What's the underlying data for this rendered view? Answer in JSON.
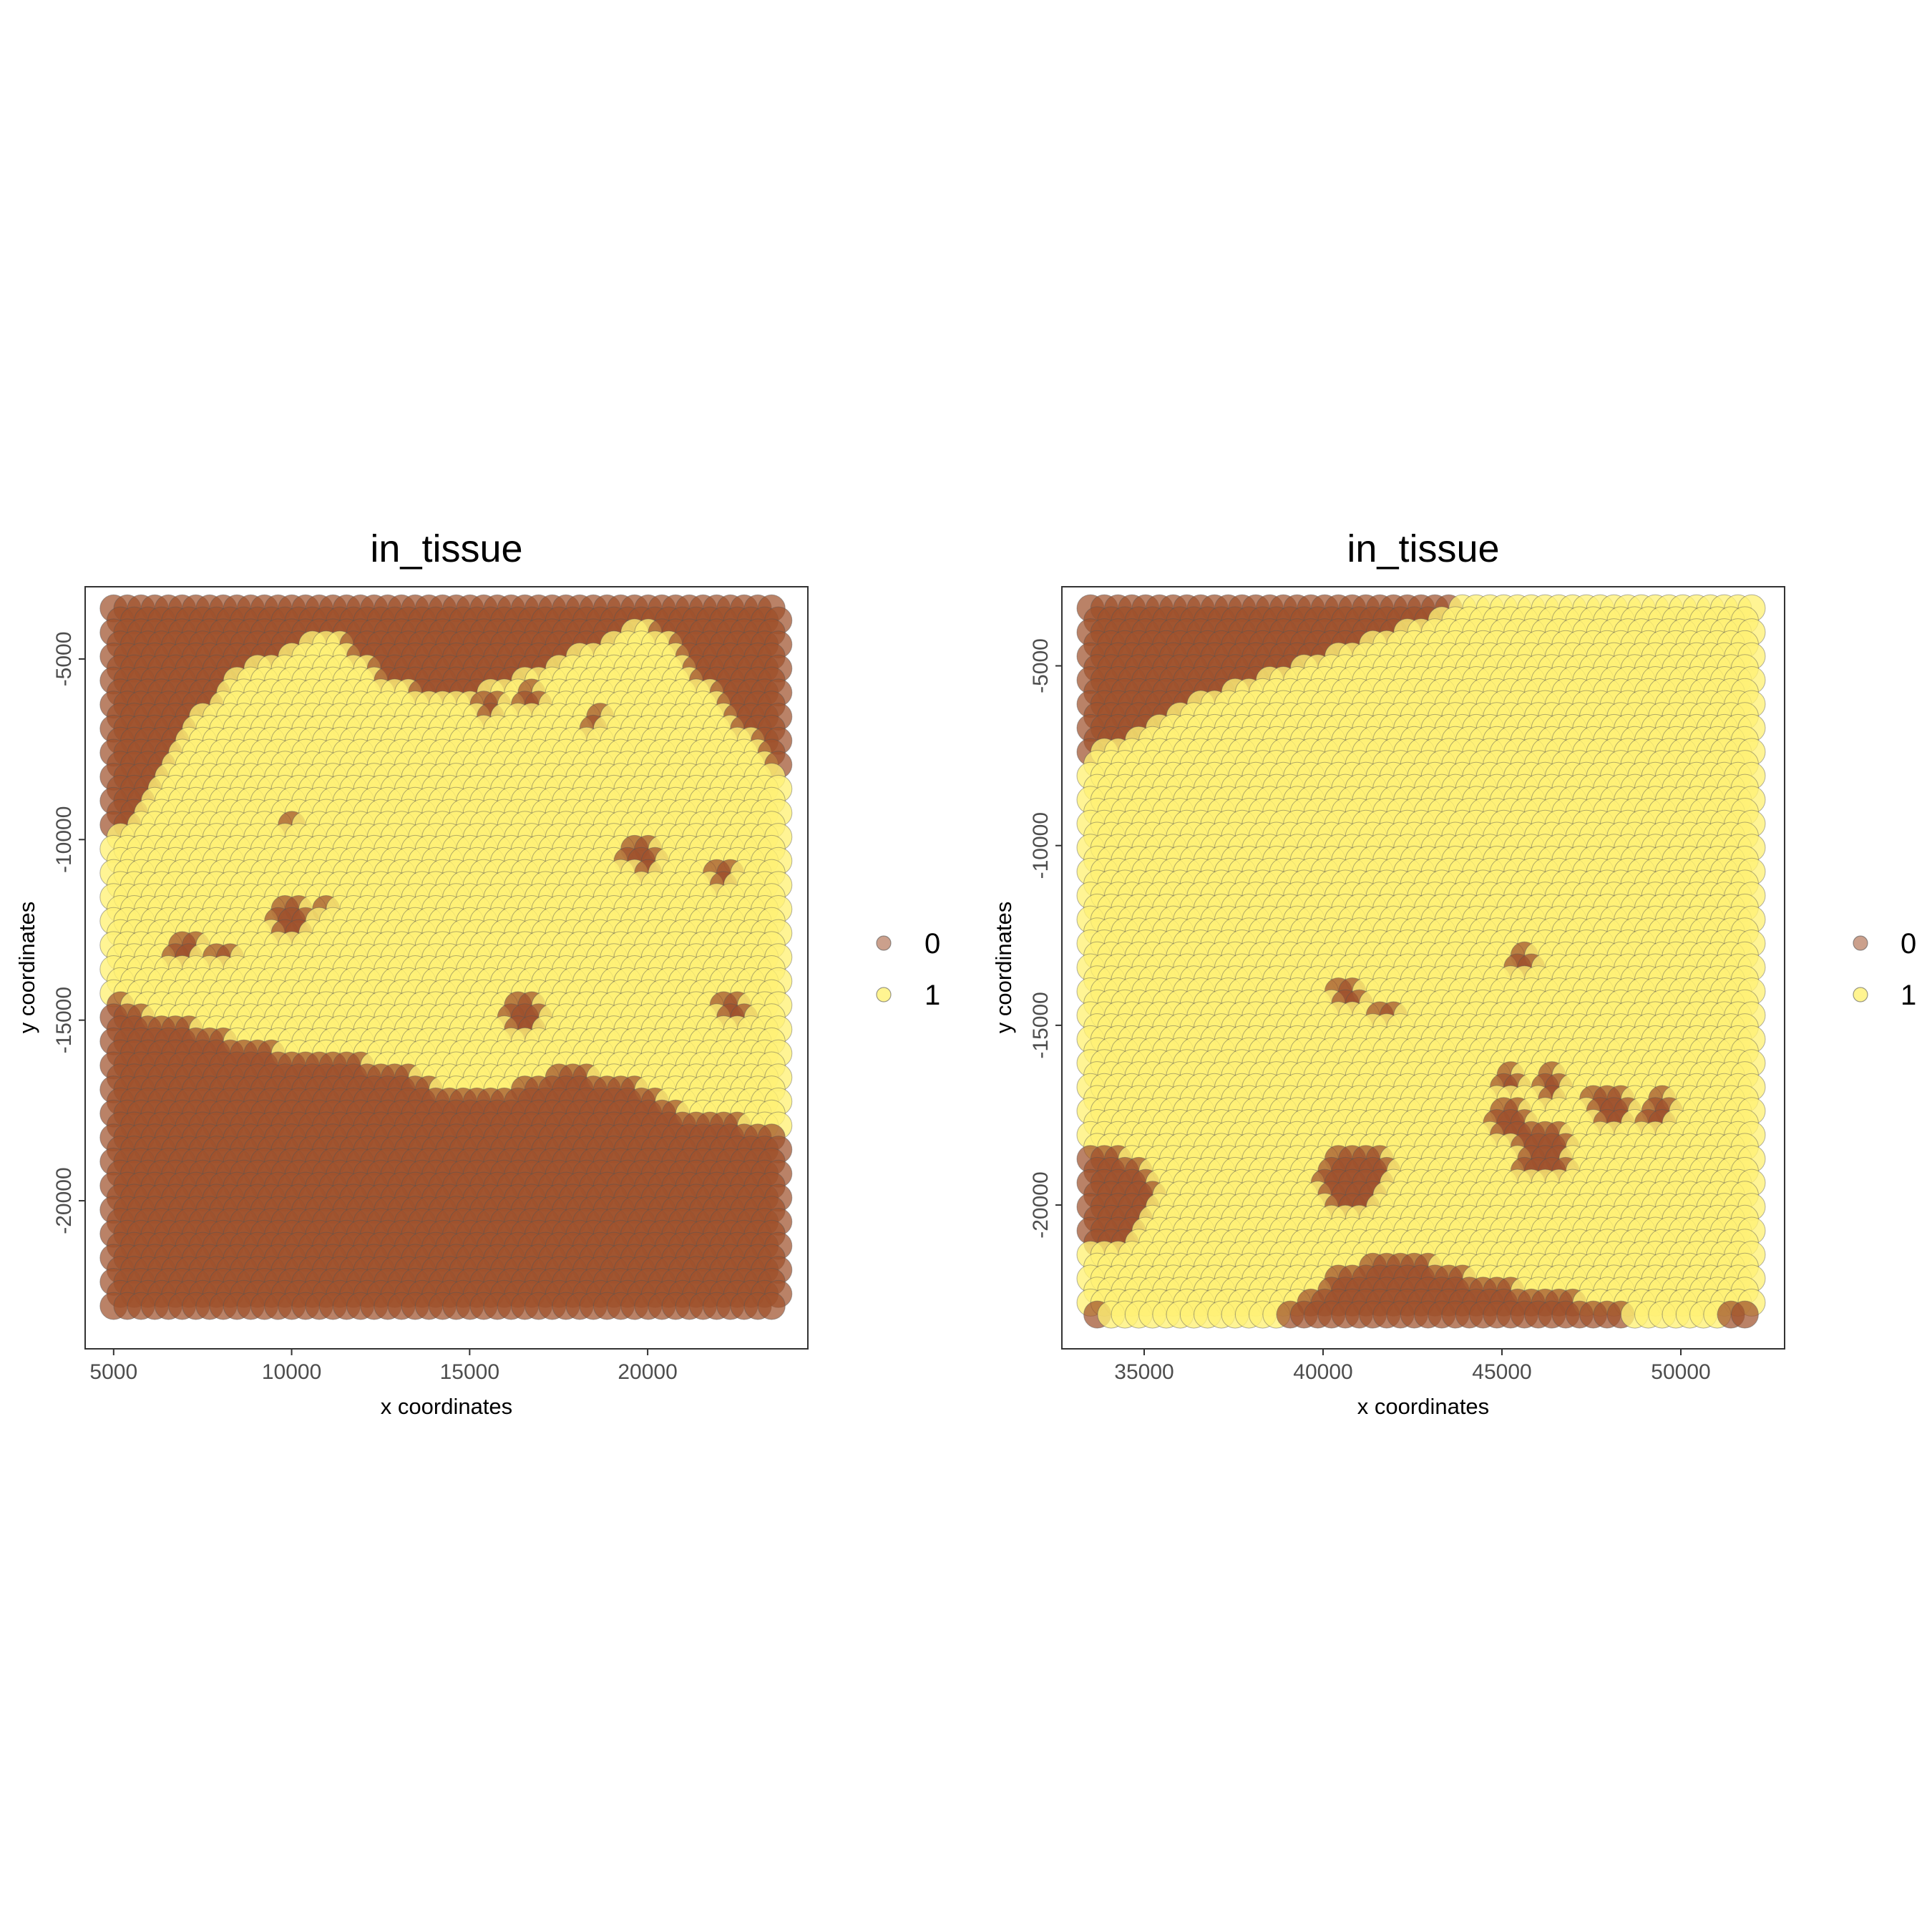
{
  "chart_data": [
    {
      "type": "scatter",
      "title": "in_tissue",
      "xlabel": "x coordinates",
      "ylabel": "y coordinates",
      "xlim": [
        4200,
        24500
      ],
      "ylim": [
        -24100,
        -3000
      ],
      "x_ticks": [
        5000,
        10000,
        15000,
        20000
      ],
      "x_tick_labels": [
        "5000",
        "10000",
        "15000",
        "20000"
      ],
      "y_ticks": [
        -5000,
        -10000,
        -15000,
        -20000
      ],
      "y_tick_labels": [
        "-5000",
        "-10000",
        "-15000",
        "-20000"
      ],
      "grid": false,
      "legend_placement": "right",
      "legend": [
        {
          "label": "0",
          "color": "#a0522d"
        },
        {
          "label": "1",
          "color": "#fff176"
        }
      ],
      "grid_extent": {
        "x": [
          5000,
          23700
        ],
        "y": [
          -23200,
          -3600
        ]
      },
      "tissue_region": {
        "upper_boundary": [
          [
            5000,
            -10000
          ],
          [
            6000,
            -9000
          ],
          [
            7000,
            -7000
          ],
          [
            8000,
            -6000
          ],
          [
            9000,
            -5000
          ],
          [
            10000,
            -4900
          ],
          [
            11000,
            -4300
          ],
          [
            12000,
            -5000
          ],
          [
            13000,
            -5900
          ],
          [
            15000,
            -6000
          ],
          [
            17000,
            -5400
          ],
          [
            19000,
            -4500
          ],
          [
            20000,
            -3900
          ],
          [
            21000,
            -5000
          ],
          [
            22000,
            -6200
          ],
          [
            23700,
            -8000
          ]
        ],
        "lower_boundary": [
          [
            5000,
            -14400
          ],
          [
            6000,
            -15000
          ],
          [
            7000,
            -15200
          ],
          [
            9000,
            -15800
          ],
          [
            11000,
            -16200
          ],
          [
            13000,
            -16300
          ],
          [
            14000,
            -17000
          ],
          [
            16000,
            -17000
          ],
          [
            18000,
            -16400
          ],
          [
            20000,
            -17000
          ],
          [
            21500,
            -17800
          ],
          [
            23700,
            -18000
          ]
        ],
        "holes": [
          {
            "x": 10000,
            "y": -12200,
            "r": 600
          },
          {
            "x": 7000,
            "y": -13000,
            "r": 400
          },
          {
            "x": 8000,
            "y": -13300,
            "r": 300
          },
          {
            "x": 10000,
            "y": -9600,
            "r": 300
          },
          {
            "x": 16800,
            "y": -6200,
            "r": 400
          },
          {
            "x": 19900,
            "y": -10500,
            "r": 500
          },
          {
            "x": 16500,
            "y": -14900,
            "r": 500
          },
          {
            "x": 22500,
            "y": -14700,
            "r": 400
          },
          {
            "x": 22200,
            "y": -11000,
            "r": 300
          },
          {
            "x": 18600,
            "y": -6700,
            "r": 300
          },
          {
            "x": 11000,
            "y": -12000,
            "r": 300
          },
          {
            "x": 15600,
            "y": -6300,
            "r": 300
          }
        ]
      }
    },
    {
      "type": "scatter",
      "title": "in_tissue",
      "xlabel": "x coordinates",
      "ylabel": "y coordinates",
      "xlim": [
        32700,
        52900
      ],
      "ylim": [
        -24000,
        -2800
      ],
      "x_ticks": [
        35000,
        40000,
        45000,
        50000
      ],
      "x_tick_labels": [
        "35000",
        "40000",
        "45000",
        "50000"
      ],
      "y_ticks": [
        -5000,
        -10000,
        -15000,
        -20000
      ],
      "y_tick_labels": [
        "-5000",
        "-10000",
        "-15000",
        "-20000"
      ],
      "grid": false,
      "legend_placement": "right",
      "legend": [
        {
          "label": "0",
          "color": "#a0522d"
        },
        {
          "label": "1",
          "color": "#fff176"
        }
      ],
      "grid_extent": {
        "x": [
          33500,
          52000
        ],
        "y": [
          -23300,
          -3400
        ]
      },
      "background_regions": {
        "upper_left_boundary": [
          [
            33500,
            -7400
          ],
          [
            34500,
            -7300
          ],
          [
            35500,
            -6600
          ],
          [
            37000,
            -5800
          ],
          [
            39000,
            -5200
          ],
          [
            41000,
            -4500
          ],
          [
            43000,
            -3800
          ],
          [
            43800,
            -3400
          ]
        ],
        "bottom_band_top": [
          [
            38800,
            -23300
          ],
          [
            39500,
            -22600
          ],
          [
            40500,
            -22000
          ],
          [
            42000,
            -21500
          ],
          [
            43500,
            -21800
          ],
          [
            45000,
            -22300
          ],
          [
            46500,
            -22600
          ],
          [
            48000,
            -22900
          ],
          [
            49500,
            -23300
          ]
        ],
        "blobs": [
          {
            "x": 34000,
            "y": -19900,
            "r": 1300
          },
          {
            "x": 40800,
            "y": -19500,
            "r": 900
          },
          {
            "x": 41500,
            "y": -19100,
            "r": 500
          },
          {
            "x": 46200,
            "y": -18600,
            "r": 750
          },
          {
            "x": 45300,
            "y": -17700,
            "r": 550
          },
          {
            "x": 46400,
            "y": -16700,
            "r": 450
          },
          {
            "x": 48000,
            "y": -17300,
            "r": 550
          },
          {
            "x": 49400,
            "y": -17400,
            "r": 450
          },
          {
            "x": 45300,
            "y": -16700,
            "r": 350
          },
          {
            "x": 40800,
            "y": -14200,
            "r": 400
          },
          {
            "x": 41800,
            "y": -14700,
            "r": 300
          },
          {
            "x": 45600,
            "y": -13200,
            "r": 300
          },
          {
            "x": 33700,
            "y": -23200,
            "r": 300
          },
          {
            "x": 51700,
            "y": -23300,
            "r": 400
          }
        ]
      }
    }
  ]
}
